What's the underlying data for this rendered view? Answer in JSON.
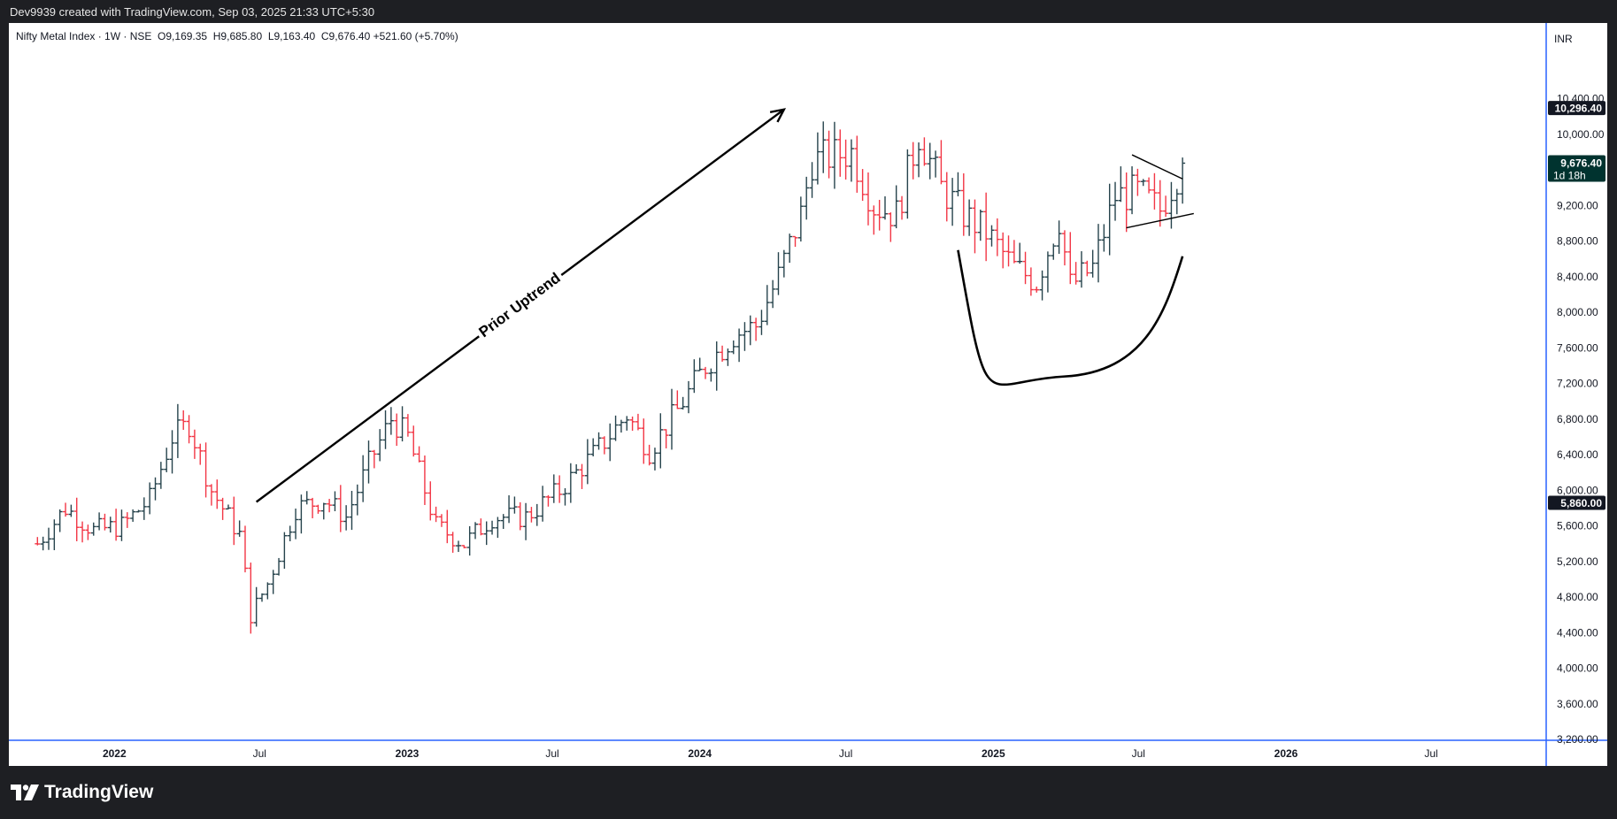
{
  "header": {
    "credit": "Dev9939 created with TradingView.com, Sep 03, 2025 21:33 UTC+5:30"
  },
  "legend": {
    "symbol": "Nifty Metal Index · 1W · NSE",
    "open": "O9,169.35",
    "high": "H9,685.80",
    "low": "L9,163.40",
    "close": "C9,676.40",
    "change": "+521.60 (+5.70%)"
  },
  "currency": "INR",
  "footer": {
    "brand": "TradingView"
  },
  "colors": {
    "up": "#26434c",
    "down": "#f23645",
    "accent": "#2962ff",
    "badge": "#131722",
    "current": "#00332f"
  },
  "chart_data": {
    "type": "ohlc",
    "title": "Nifty Metal Index · 1W · NSE",
    "ylim": [
      3000,
      10700
    ],
    "xlim": [
      "2021-09-27",
      "2026-12-31"
    ],
    "y_ticks": [
      3200,
      3600,
      4000,
      4400,
      4800,
      5200,
      5600,
      6000,
      6400,
      6800,
      7200,
      7600,
      8000,
      8400,
      8800,
      9200,
      10000,
      10400
    ],
    "y_tick_labels": [
      "3,200.00",
      "3,600.00",
      "4,000.00",
      "4,400.00",
      "4,800.00",
      "5,200.00",
      "5,600.00",
      "6,000.00",
      "6,400.00",
      "6,800.00",
      "7,200.00",
      "7,600.00",
      "8,000.00",
      "8,400.00",
      "8,800.00",
      "9,200.00",
      "10,000.00",
      "10,400.00"
    ],
    "x_ticks": [
      {
        "label": "2022",
        "date": "2022-01-01",
        "bold": true
      },
      {
        "label": "Jul",
        "date": "2022-07-01",
        "bold": false
      },
      {
        "label": "2023",
        "date": "2023-01-01",
        "bold": true
      },
      {
        "label": "Jul",
        "date": "2023-07-01",
        "bold": false
      },
      {
        "label": "2024",
        "date": "2024-01-01",
        "bold": true
      },
      {
        "label": "Jul",
        "date": "2024-07-01",
        "bold": false
      },
      {
        "label": "2025",
        "date": "2025-01-01",
        "bold": true
      },
      {
        "label": "Jul",
        "date": "2025-07-01",
        "bold": false
      },
      {
        "label": "2026",
        "date": "2026-01-01",
        "bold": true
      },
      {
        "label": "Jul",
        "date": "2026-07-01",
        "bold": false
      }
    ],
    "price_badges": [
      {
        "label": "10,296.40",
        "value": 10296.4,
        "type": "high"
      },
      {
        "label": "9,676.40",
        "value": 9676.4,
        "type": "current",
        "sub": "1d 18h"
      },
      {
        "label": "5,860.00",
        "value": 5860,
        "type": "low"
      }
    ],
    "series_anchors": [
      {
        "date": "2021-09-27",
        "close": 5400
      },
      {
        "date": "2021-11-01",
        "close": 5800
      },
      {
        "date": "2021-12-06",
        "close": 5550
      },
      {
        "date": "2022-01-10",
        "close": 5600
      },
      {
        "date": "2022-02-14",
        "close": 5900
      },
      {
        "date": "2022-03-14",
        "close": 6600
      },
      {
        "date": "2022-04-04",
        "close": 6750
      },
      {
        "date": "2022-05-02",
        "close": 6000
      },
      {
        "date": "2022-06-06",
        "close": 5500
      },
      {
        "date": "2022-06-20",
        "close": 4600
      },
      {
        "date": "2022-07-11",
        "close": 4950
      },
      {
        "date": "2022-08-15",
        "close": 5800
      },
      {
        "date": "2022-09-19",
        "close": 5900
      },
      {
        "date": "2022-10-17",
        "close": 5700
      },
      {
        "date": "2022-11-14",
        "close": 6300
      },
      {
        "date": "2022-12-12",
        "close": 6800
      },
      {
        "date": "2023-01-02",
        "close": 6600
      },
      {
        "date": "2023-02-06",
        "close": 5600
      },
      {
        "date": "2023-03-13",
        "close": 5400
      },
      {
        "date": "2023-04-17",
        "close": 5700
      },
      {
        "date": "2023-05-29",
        "close": 5700
      },
      {
        "date": "2023-07-10",
        "close": 6000
      },
      {
        "date": "2023-08-21",
        "close": 6400
      },
      {
        "date": "2023-10-02",
        "close": 6850
      },
      {
        "date": "2023-10-30",
        "close": 6450
      },
      {
        "date": "2023-12-04",
        "close": 6900
      },
      {
        "date": "2024-01-08",
        "close": 7400
      },
      {
        "date": "2024-02-12",
        "close": 7750
      },
      {
        "date": "2024-03-11",
        "close": 7850
      },
      {
        "date": "2024-04-08",
        "close": 8400
      },
      {
        "date": "2024-05-06",
        "close": 9100
      },
      {
        "date": "2024-05-20",
        "close": 9700
      },
      {
        "date": "2024-06-10",
        "close": 9750
      },
      {
        "date": "2024-07-08",
        "close": 9800
      },
      {
        "date": "2024-08-05",
        "close": 9200
      },
      {
        "date": "2024-09-02",
        "close": 9100
      },
      {
        "date": "2024-09-30",
        "close": 10000
      },
      {
        "date": "2024-10-28",
        "close": 9400
      },
      {
        "date": "2024-11-25",
        "close": 9100
      },
      {
        "date": "2024-12-23",
        "close": 8900
      },
      {
        "date": "2025-01-27",
        "close": 8500
      },
      {
        "date": "2025-02-24",
        "close": 8350
      },
      {
        "date": "2025-03-24",
        "close": 9050
      },
      {
        "date": "2025-04-07",
        "close": 8300
      },
      {
        "date": "2025-05-05",
        "close": 8500
      },
      {
        "date": "2025-06-02",
        "close": 9300
      },
      {
        "date": "2025-06-30",
        "close": 9350
      },
      {
        "date": "2025-07-28",
        "close": 9150
      },
      {
        "date": "2025-08-25",
        "close": 9676.4
      }
    ],
    "annotations": [
      {
        "type": "arrow",
        "label": "Prior Uptrend",
        "from": {
          "date": "2022-06-27",
          "value": 5870
        },
        "to": {
          "date": "2024-04-15",
          "value": 10280
        }
      },
      {
        "type": "arc",
        "label": "",
        "from": {
          "date": "2024-11-18",
          "value": 8700
        },
        "bottom": {
          "date": "2025-03-31",
          "value": 7280
        },
        "to": {
          "date": "2025-08-25",
          "value": 8630
        }
      },
      {
        "type": "trendline",
        "label": "",
        "from": {
          "date": "2025-06-23",
          "value": 9770
        },
        "to": {
          "date": "2025-08-25",
          "value": 9500
        }
      },
      {
        "type": "trendline",
        "label": "",
        "from": {
          "date": "2025-06-16",
          "value": 8950
        },
        "to": {
          "date": "2025-09-08",
          "value": 9110
        }
      }
    ]
  }
}
